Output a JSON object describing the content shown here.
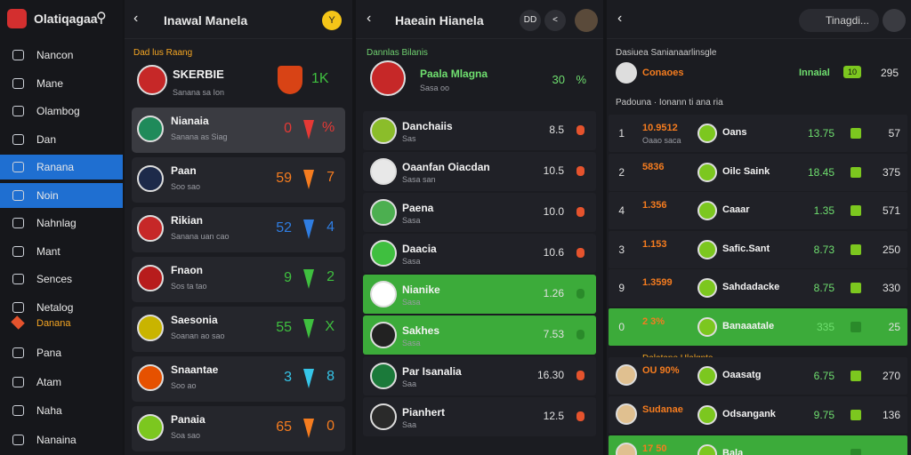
{
  "sidebar": {
    "brand": "Olatiqagaa",
    "items": [
      "Nancon",
      "Mane",
      "Olambog",
      "Dan",
      "Ranana",
      "Noin",
      "Nahnlag",
      "Mant",
      "Sences",
      "Netalog"
    ],
    "active": [
      4,
      5
    ],
    "section": "Danana",
    "items2": [
      "Pana",
      "Atam",
      "Naha",
      "Nanaina"
    ]
  },
  "panel1": {
    "title": "Inawal Manela",
    "badge": "Y",
    "section": "Dad lus Raang",
    "top": {
      "name": "SKERBIE",
      "sub": "Sanana sa Ion",
      "score": "1K"
    },
    "rows": [
      {
        "name": "Nianaia",
        "sub": "Sanana as Siag",
        "score": "0",
        "side": "%",
        "color": "#e53935",
        "avatar": "#1f8a5a"
      },
      {
        "name": "Paan",
        "sub": "Soo sao",
        "score": "59",
        "side": "7",
        "color": "#f57c1f",
        "avatar": "#1d2a4a"
      },
      {
        "name": "Rikian",
        "sub": "Sanana uan cao",
        "score": "52",
        "side": "4",
        "color": "#2f7de1",
        "avatar": "#c62828"
      },
      {
        "name": "Fnaon",
        "sub": "Sos ta tao",
        "score": "9",
        "side": "2",
        "color": "#3fbf3f",
        "avatar": "#b71c1c"
      },
      {
        "name": "Saesonia",
        "sub": "Soanan ao sao",
        "score": "55",
        "side": "X",
        "color": "#3fbf3f",
        "avatar": "#c9b400"
      },
      {
        "name": "Snaantae",
        "sub": "Soo ao",
        "score": "3",
        "side": "8",
        "color": "#36c5e8",
        "avatar": "#e65100"
      },
      {
        "name": "Panaia",
        "sub": "Soa sao",
        "score": "65",
        "side": "0",
        "color": "#f57c1f",
        "avatar": "#7cc71f"
      }
    ]
  },
  "panel2": {
    "title": "Haeain Hianela",
    "buttons": [
      "DD",
      "<"
    ],
    "section": "Dannlas Bilanis",
    "top": {
      "name": "Paala Mlagna",
      "sub": "Sasa oo",
      "score": "30",
      "side": "%"
    },
    "rows": [
      {
        "name": "Danchaiis",
        "sub": "Sas",
        "value": "8.5",
        "avatar": "#8bbd2a"
      },
      {
        "name": "Oaanfan Oiacdan",
        "sub": "Sasa san",
        "value": "10.5",
        "avatar": "#e8e8e8"
      },
      {
        "name": "Paena",
        "sub": "Sasa",
        "value": "10.0",
        "avatar": "#4caf50"
      },
      {
        "name": "Daacia",
        "sub": "Sasa",
        "value": "10.6",
        "avatar": "#3fbf3f"
      },
      {
        "name": "Nianike",
        "sub": "Sasa",
        "value": "1.26",
        "avatar": "#ffffff"
      },
      {
        "name": "Sakhes",
        "sub": "Sasa",
        "value": "7.53",
        "avatar": "#222222"
      },
      {
        "name": "Par Isanalia",
        "sub": "Saa",
        "value": "16.30",
        "avatar": "#1b7a3a"
      },
      {
        "name": "Pianhert",
        "sub": "Saa",
        "value": "12.5",
        "avatar": "#2a2a2a"
      }
    ],
    "highlight": [
      4,
      5
    ]
  },
  "panel3": {
    "search": "Tinagdi...",
    "section": "Dasiuea Sanianaarlinsgle",
    "top": {
      "name": "Conaoes",
      "label": "Innaial",
      "badge": "10",
      "right": "295"
    },
    "section2": "Padouna · Ionann ti ana ria",
    "rows": [
      {
        "rank": "1",
        "code": "10.9512",
        "sub": "Oaao saca",
        "player": "Oans",
        "value": "13.75",
        "right": "57"
      },
      {
        "rank": "2",
        "code": "5836",
        "sub": "",
        "player": "Oilc Saink",
        "value": "18.45",
        "right": "375"
      },
      {
        "rank": "4",
        "code": "1.356",
        "sub": "",
        "player": "Caaar",
        "value": "1.35",
        "right": "571"
      },
      {
        "rank": "3",
        "code": "1.153",
        "sub": "",
        "player": "Safic.Sant",
        "value": "8.73",
        "right": "250"
      },
      {
        "rank": "9",
        "code": "1.3599",
        "sub": "",
        "player": "Sahdadacke",
        "value": "8.75",
        "right": "330"
      },
      {
        "rank": "0",
        "code": "2 3%",
        "sub": "",
        "player": "Banaaatale",
        "value": "335",
        "right": "25"
      }
    ],
    "highlight": 5,
    "section3": "Dalatane Hlalgnte",
    "rows2": [
      {
        "code": "OU 90%",
        "player": "Oaasatg",
        "value": "6.75",
        "right": "270"
      },
      {
        "code": "Sudanae",
        "player": "Odsangank",
        "value": "9.75",
        "right": "136"
      },
      {
        "code": "17 50",
        "player": "Bala",
        "value": "",
        "right": ""
      }
    ]
  }
}
